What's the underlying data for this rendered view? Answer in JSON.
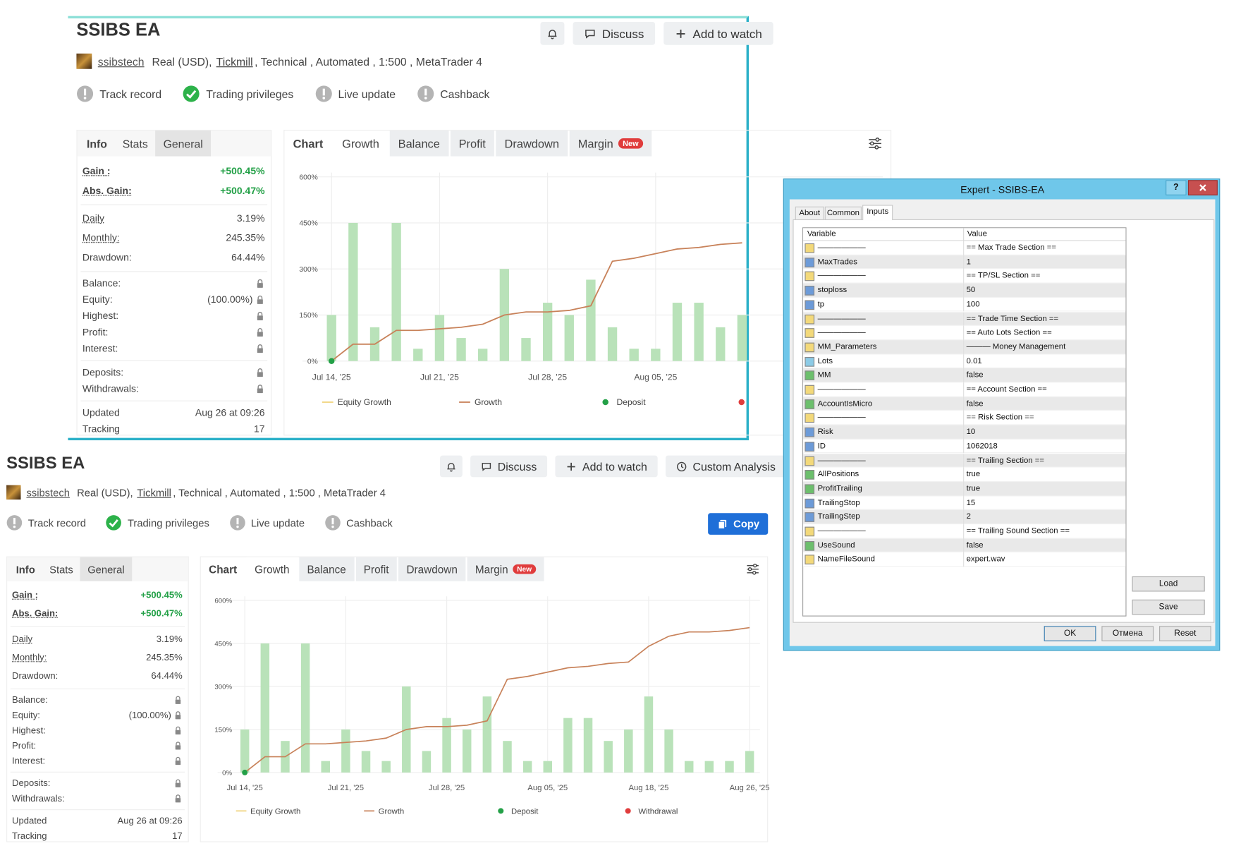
{
  "top_panel": {
    "title": "SSIBS EA",
    "buttons": [
      "Discuss",
      "Add to watch"
    ],
    "user": "ssibstech",
    "account_prefix": "Real (USD),",
    "broker": "Tickmill",
    "account_suffix": ", Technical , Automated , 1:500 , MetaTrader 4",
    "badges": [
      {
        "label": "Track record",
        "ok": false
      },
      {
        "label": "Trading privileges",
        "ok": true
      },
      {
        "label": "Live update",
        "ok": false
      },
      {
        "label": "Cashback",
        "ok": false
      }
    ],
    "info_tabs": [
      "Info",
      "Stats",
      "General"
    ],
    "info_rows": [
      [
        {
          "label": "Gain :",
          "value": "+500.45%"
        },
        {
          "label": "Abs. Gain:",
          "value": "+500.47%"
        }
      ],
      [
        {
          "label": "Daily",
          "value": "3.19%"
        },
        {
          "label": "Monthly:",
          "value": "245.35%"
        },
        {
          "label": "Drawdown:",
          "value": "64.44%"
        }
      ],
      [
        {
          "label": "Balance:",
          "locked": true
        },
        {
          "label": "Equity:",
          "value": "(100.00%)",
          "locked": true
        },
        {
          "label": "Highest:",
          "locked": true
        },
        {
          "label": "Profit:",
          "locked": true
        },
        {
          "label": "Interest:",
          "locked": true
        }
      ],
      [
        {
          "label": "Deposits:",
          "locked": true
        },
        {
          "label": "Withdrawals:",
          "locked": true
        }
      ],
      [
        {
          "label": "Updated",
          "value": "Aug 26 at 09:26"
        },
        {
          "label": "Tracking",
          "value": "17"
        }
      ]
    ],
    "chart_tabs": [
      "Chart",
      "Growth",
      "Balance",
      "Profit",
      "Drawdown",
      "Margin"
    ],
    "new_badge": "New",
    "chart": {
      "type": "bar-line",
      "categories": [
        "Jul 14, '25",
        null,
        null,
        null,
        null,
        "Jul 21, '25",
        null,
        null,
        null,
        null,
        "Jul 28, '25",
        null,
        null,
        null,
        null,
        "Aug 05, '25",
        null,
        null,
        null,
        null
      ],
      "ylim": [
        0,
        600
      ],
      "yticks": [
        {
          "value": 0,
          "label": "0%"
        },
        {
          "value": 150,
          "label": "150%"
        },
        {
          "value": 300,
          "label": "300%"
        },
        {
          "value": 450,
          "label": "450%"
        },
        {
          "value": 600,
          "label": "600%"
        }
      ],
      "grid": true,
      "bars": {
        "color": "#b9e2b9",
        "values": [
          150,
          450,
          110,
          450,
          40,
          150,
          75,
          40,
          300,
          75,
          190,
          150,
          265,
          110,
          40,
          40,
          190,
          190,
          110,
          150
        ]
      },
      "series": [
        {
          "name": "Equity Growth",
          "color": "#f0d27a",
          "marker": "line"
        },
        {
          "name": "Growth",
          "color": "#c8825a",
          "marker": "line",
          "values": [
            0,
            55,
            55,
            100,
            100,
            105,
            110,
            120,
            150,
            160,
            160,
            165,
            180,
            325,
            335,
            350,
            365,
            370,
            380,
            385
          ]
        },
        {
          "name": "Deposit",
          "color": "#23a047",
          "marker": "dot",
          "values": [
            0,
            null,
            null,
            null,
            null,
            null,
            null,
            null,
            null,
            null,
            null,
            null,
            null,
            null,
            null,
            null,
            null,
            null,
            null,
            null
          ]
        },
        {
          "color": "#e03c3c",
          "marker": "dot"
        }
      ]
    }
  },
  "bottom_panel": {
    "title": "SSIBS EA",
    "buttons": [
      "Discuss",
      "Add to watch",
      "Custom Analysis"
    ],
    "user": "ssibstech",
    "account_prefix": "Real (USD),",
    "broker": "Tickmill",
    "account_suffix": ", Technical , Automated , 1:500 , MetaTrader 4",
    "badges": [
      {
        "label": "Track record",
        "ok": false
      },
      {
        "label": "Trading privileges",
        "ok": true
      },
      {
        "label": "Live update",
        "ok": false
      },
      {
        "label": "Cashback",
        "ok": false
      }
    ],
    "copy": "Copy",
    "info_tabs": [
      "Info",
      "Stats",
      "General"
    ],
    "info_rows": [
      [
        {
          "label": "Gain :",
          "value": "+500.45%"
        },
        {
          "label": "Abs. Gain:",
          "value": "+500.47%"
        }
      ],
      [
        {
          "label": "Daily",
          "value": "3.19%"
        },
        {
          "label": "Monthly:",
          "value": "245.35%"
        },
        {
          "label": "Drawdown:",
          "value": "64.44%"
        }
      ],
      [
        {
          "label": "Balance:",
          "locked": true
        },
        {
          "label": "Equity:",
          "value": "(100.00%)",
          "locked": true
        },
        {
          "label": "Highest:",
          "locked": true
        },
        {
          "label": "Profit:",
          "locked": true
        },
        {
          "label": "Interest:",
          "locked": true
        }
      ],
      [
        {
          "label": "Deposits:",
          "locked": true
        },
        {
          "label": "Withdrawals:",
          "locked": true
        }
      ],
      [
        {
          "label": "Updated",
          "value": "Aug 26 at 09:26"
        },
        {
          "label": "Tracking",
          "value": "17"
        }
      ]
    ],
    "chart_tabs": [
      "Chart",
      "Growth",
      "Balance",
      "Profit",
      "Drawdown",
      "Margin"
    ],
    "new_badge": "New",
    "chart": {
      "type": "bar-line",
      "categories": [
        "Jul 14, '25",
        null,
        null,
        null,
        null,
        "Jul 21, '25",
        null,
        null,
        null,
        null,
        "Jul 28, '25",
        null,
        null,
        null,
        null,
        "Aug 05, '25",
        null,
        null,
        null,
        null,
        "Aug 18, '25",
        null,
        null,
        null,
        null,
        "Aug 26, '25"
      ],
      "ylim": [
        0,
        600
      ],
      "yticks": [
        {
          "value": 0,
          "label": "0%"
        },
        {
          "value": 150,
          "label": "150%"
        },
        {
          "value": 300,
          "label": "300%"
        },
        {
          "value": 450,
          "label": "450%"
        },
        {
          "value": 600,
          "label": "600%"
        }
      ],
      "grid": true,
      "bars": {
        "color": "#b9e2b9",
        "values": [
          150,
          450,
          110,
          450,
          40,
          150,
          75,
          40,
          300,
          75,
          190,
          150,
          265,
          110,
          40,
          40,
          190,
          190,
          110,
          150,
          265,
          150,
          40,
          40,
          40,
          75
        ]
      },
      "series": [
        {
          "name": "Equity Growth",
          "color": "#f0d27a",
          "marker": "line"
        },
        {
          "name": "Growth",
          "color": "#c8825a",
          "marker": "line",
          "values": [
            0,
            55,
            55,
            100,
            100,
            105,
            110,
            120,
            150,
            160,
            160,
            165,
            180,
            325,
            335,
            350,
            365,
            370,
            380,
            385,
            440,
            475,
            490,
            490,
            495,
            505
          ]
        },
        {
          "name": "Deposit",
          "color": "#23a047",
          "marker": "dot",
          "values": [
            0,
            null,
            null,
            null,
            null,
            null,
            null,
            null,
            null,
            null,
            null,
            null,
            null,
            null,
            null,
            null,
            null,
            null,
            null,
            null,
            null,
            null,
            null,
            null,
            null,
            null
          ]
        },
        {
          "name": "Withdrawal",
          "color": "#e03c3c",
          "marker": "dot"
        }
      ]
    }
  },
  "dialog": {
    "title": "Expert - SSIBS-EA",
    "help": "?",
    "tabs": [
      "About",
      "Common",
      "Inputs"
    ],
    "columns": [
      "Variable",
      "Value"
    ],
    "rows": [
      {
        "type": "string",
        "variable": "——————",
        "value": "== Max Trade Section =="
      },
      {
        "type": "int",
        "variable": "MaxTrades",
        "value": "1"
      },
      {
        "type": "string",
        "variable": "——————",
        "value": "== TP/SL Section =="
      },
      {
        "type": "int",
        "variable": "stoploss",
        "value": "50"
      },
      {
        "type": "int",
        "variable": "tp",
        "value": "100"
      },
      {
        "type": "string",
        "variable": "——————",
        "value": "== Trade Time Section =="
      },
      {
        "type": "string",
        "variable": "——————",
        "value": "== Auto Lots Section =="
      },
      {
        "type": "string",
        "variable": "MM_Parameters",
        "value": "——— Money Management"
      },
      {
        "type": "double",
        "variable": "Lots",
        "value": "0.01"
      },
      {
        "type": "bool",
        "variable": "MM",
        "value": "false"
      },
      {
        "type": "string",
        "variable": "——————",
        "value": "== Account Section =="
      },
      {
        "type": "bool",
        "variable": "AccountIsMicro",
        "value": "false"
      },
      {
        "type": "string",
        "variable": "——————",
        "value": "== Risk Section =="
      },
      {
        "type": "int",
        "variable": "Risk",
        "value": "10"
      },
      {
        "type": "int",
        "variable": "ID",
        "value": "1062018"
      },
      {
        "type": "string",
        "variable": "——————",
        "value": "== Trailing Section =="
      },
      {
        "type": "bool",
        "variable": "AllPositions",
        "value": "true"
      },
      {
        "type": "bool",
        "variable": "ProfitTrailing",
        "value": "true"
      },
      {
        "type": "int",
        "variable": "TrailingStop",
        "value": "15"
      },
      {
        "type": "int",
        "variable": "TrailingStep",
        "value": "2"
      },
      {
        "type": "string",
        "variable": "——————",
        "value": "== Trailing Sound Section =="
      },
      {
        "type": "bool",
        "variable": "UseSound",
        "value": "false"
      },
      {
        "type": "string",
        "variable": "NameFileSound",
        "value": "expert.wav"
      }
    ],
    "side_buttons": [
      "Load",
      "Save"
    ],
    "buttons": [
      "OK",
      "Отмена",
      "Reset"
    ]
  }
}
